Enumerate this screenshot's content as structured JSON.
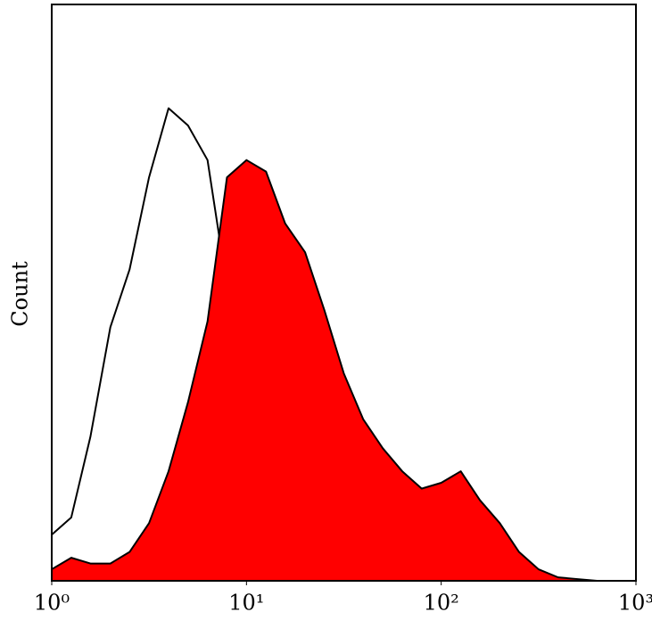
{
  "chart_data": {
    "type": "area",
    "y_label": "Count",
    "x": [
      1,
      1.26,
      1.58,
      2,
      2.51,
      3.16,
      3.98,
      5.01,
      6.31,
      7.94,
      10,
      12.6,
      15.8,
      20,
      25.1,
      31.6,
      39.8,
      50.1,
      63.1,
      79.4,
      100,
      126,
      158,
      200,
      251,
      316,
      398,
      501,
      631,
      794,
      1000
    ],
    "series": [
      {
        "color": "#000000",
        "fill": false,
        "values": [
          8,
          11,
          25,
          44,
          54,
          70,
          82,
          79,
          73,
          51,
          36,
          23,
          13,
          5,
          3,
          1,
          0.3,
          0,
          0,
          0,
          0,
          0,
          0,
          0,
          0,
          0,
          0,
          0,
          0,
          0,
          0
        ]
      },
      {
        "color": "#ff0000",
        "fill": true,
        "values": [
          2,
          4,
          3,
          3,
          5,
          10,
          19,
          31,
          45,
          70,
          73,
          71,
          62,
          57,
          47,
          36,
          28,
          23,
          19,
          16,
          17,
          19,
          14,
          10,
          5,
          2,
          0.6,
          0.3,
          0,
          0,
          0
        ]
      }
    ],
    "xscale": "log",
    "xlim": [
      1,
      1000
    ],
    "xticks": [
      {
        "value": 1,
        "label": "10⁰"
      },
      {
        "value": 10,
        "label": "10¹"
      },
      {
        "value": 100,
        "label": "10²"
      },
      {
        "value": 1000,
        "label": "10³"
      }
    ],
    "ylim": [
      0,
      100
    ]
  }
}
